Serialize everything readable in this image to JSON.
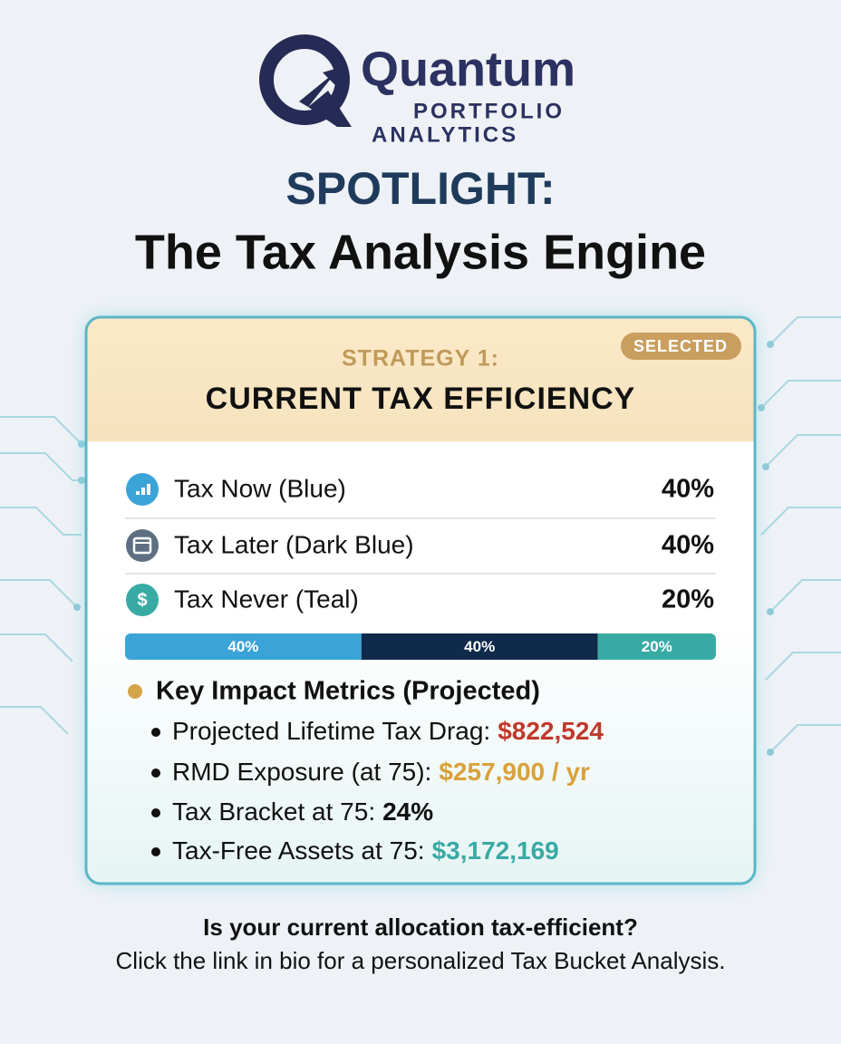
{
  "logo": {
    "name": "Quantum",
    "tagline_1": "PORTFOLIO",
    "tagline_2": "ANALYTICS"
  },
  "header": {
    "eyebrow": "SPOTLIGHT:",
    "title": "The Tax Analysis Engine"
  },
  "card": {
    "badge": "SELECTED",
    "strategy": "STRATEGY 1:",
    "title": "CURRENT TAX EFFICIENCY",
    "allocation": [
      {
        "name": "Tax Now (Blue)",
        "value": 40,
        "label": "40%",
        "color": "#3aa4d8"
      },
      {
        "name": "Tax Later (Dark Blue)",
        "value": 40,
        "label": "40%",
        "color": "#0f2a4a"
      },
      {
        "name": "Tax Never (Teal)",
        "value": 20,
        "label": "20%",
        "color": "#38aaa4",
        "icon": "$"
      }
    ],
    "metrics_heading": "Key Impact Metrics (Projected)",
    "metrics": [
      {
        "label": "Projected Lifetime Tax Drag:",
        "value": "$822,524",
        "color": "#c0392b"
      },
      {
        "label": "RMD Exposure (at 75):",
        "value": "$257,900 / yr",
        "color": "#d9a13a"
      },
      {
        "label": "Tax Bracket at 75:",
        "value": "24%",
        "color": "#111111"
      },
      {
        "label": "Tax-Free Assets at 75:",
        "value": "$3,172,169",
        "color": "#38aaa4"
      }
    ]
  },
  "footer": {
    "question": "Is your current allocation tax-efficient?",
    "cta": "Click the link in bio for a personalized Tax Bucket Analysis."
  }
}
